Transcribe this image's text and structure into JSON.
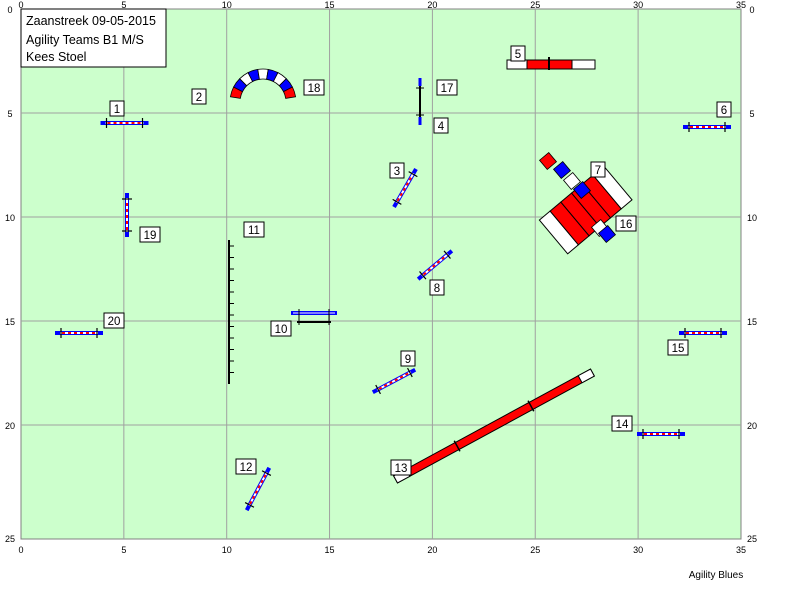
{
  "header": {
    "line1": "Zaanstreek 09-05-2015",
    "line2": "Agility Teams B1 M/S",
    "line3": "Kees Stoel"
  },
  "footer": {
    "credit": "Agility Blues"
  },
  "axes": {
    "x_ticks": [
      "0",
      "5",
      "10",
      "15",
      "20",
      "25",
      "30",
      "35"
    ],
    "y_ticks": [
      "0",
      "5",
      "10",
      "15",
      "20",
      "25"
    ]
  },
  "colors": {
    "field": "#ccffcc",
    "grid": "#a0a0a0",
    "red": "#ff0000",
    "blue": "#0000ff"
  },
  "obstacles": [
    {
      "number": "1",
      "type": "jump",
      "x": 5.0,
      "y": 4.85
    },
    {
      "number": "2",
      "type": "tunnel",
      "x": 11.5,
      "y": 3.5
    },
    {
      "number": "3",
      "type": "jump",
      "x": 18.5,
      "y": 8.0
    },
    {
      "number": "4",
      "type": "tire",
      "x": 19.2,
      "y": 3.9
    },
    {
      "number": "5",
      "type": "seesaw",
      "x": 25.2,
      "y": 2.1
    },
    {
      "number": "6",
      "type": "jump",
      "x": 33.0,
      "y": 5.0
    },
    {
      "number": "7",
      "type": "tunnel",
      "x": 26.6,
      "y": 8.6
    },
    {
      "number": "8",
      "type": "jump",
      "x": 20.0,
      "y": 12.0
    },
    {
      "number": "9",
      "type": "jump",
      "x": 17.9,
      "y": 17.4
    },
    {
      "number": "10",
      "type": "long-jump",
      "x": 13.3,
      "y": 14.2
    },
    {
      "number": "11",
      "type": "weave",
      "x": 10.0,
      "y": 14.0
    },
    {
      "number": "12",
      "type": "jump",
      "x": 11.5,
      "y": 22.6
    },
    {
      "number": "13",
      "type": "dog-walk",
      "x": 22.3,
      "y": 19.4
    },
    {
      "number": "14",
      "type": "jump",
      "x": 30.8,
      "y": 19.9
    },
    {
      "number": "15",
      "type": "jump",
      "x": 32.8,
      "y": 15.0
    },
    {
      "number": "16",
      "type": "table",
      "x": 27.0,
      "y": 9.4
    },
    {
      "number": "17",
      "type": "tire",
      "x": 19.2,
      "y": 3.4
    },
    {
      "number": "18",
      "type": "tunnel",
      "x": 11.5,
      "y": 3.5
    },
    {
      "number": "19",
      "type": "jump",
      "x": 5.1,
      "y": 9.1
    },
    {
      "number": "20",
      "type": "jump",
      "x": 2.9,
      "y": 15.0
    }
  ]
}
